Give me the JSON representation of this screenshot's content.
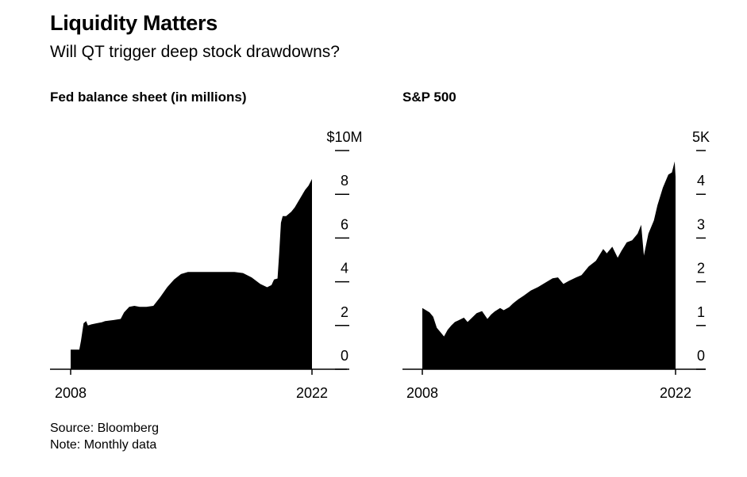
{
  "title": "Liquidity Matters",
  "subtitle": "Will QT trigger deep stock drawdowns?",
  "source": "Source: Bloomberg",
  "note": "Note: Monthly data",
  "colors": {
    "fill": "#000000",
    "background": "#ffffff"
  },
  "chart_data": [
    {
      "type": "area",
      "title": "Fed balance sheet (in millions)",
      "xlabel": "",
      "ylabel": "",
      "xlim": [
        2008,
        2022
      ],
      "ylim": [
        0,
        10
      ],
      "x_ticks": [
        2008,
        2022
      ],
      "x_tick_labels": [
        "2008",
        "2022"
      ],
      "y_ticks": [
        0,
        2,
        4,
        6,
        8,
        10
      ],
      "y_tick_labels": [
        "0",
        "2",
        "4",
        "6",
        "8",
        "$10M"
      ],
      "grid": false,
      "x": [
        2008.0,
        2008.25,
        2008.5,
        2008.6,
        2008.75,
        2008.9,
        2009.0,
        2009.2,
        2009.5,
        2009.8,
        2010.0,
        2010.5,
        2010.9,
        2011.1,
        2011.4,
        2011.7,
        2012.0,
        2012.4,
        2012.8,
        2013.2,
        2013.6,
        2014.0,
        2014.4,
        2014.8,
        2015.5,
        2016.5,
        2017.5,
        2018.0,
        2018.5,
        2019.0,
        2019.4,
        2019.65,
        2019.8,
        2020.0,
        2020.1,
        2020.2,
        2020.3,
        2020.5,
        2020.8,
        2021.0,
        2021.3,
        2021.6,
        2021.8,
        2022.0
      ],
      "y": [
        0.9,
        0.9,
        0.9,
        1.3,
        2.1,
        2.2,
        2.0,
        2.05,
        2.1,
        2.15,
        2.2,
        2.25,
        2.3,
        2.6,
        2.85,
        2.9,
        2.85,
        2.85,
        2.9,
        3.3,
        3.75,
        4.1,
        4.35,
        4.45,
        4.45,
        4.45,
        4.45,
        4.4,
        4.2,
        3.9,
        3.75,
        3.85,
        4.1,
        4.15,
        5.3,
        6.7,
        7.0,
        7.0,
        7.2,
        7.4,
        7.8,
        8.2,
        8.4,
        8.7
      ]
    },
    {
      "type": "area",
      "title": "S&P 500",
      "xlabel": "",
      "ylabel": "",
      "xlim": [
        2008,
        2022
      ],
      "ylim": [
        0,
        5
      ],
      "x_ticks": [
        2008,
        2022
      ],
      "x_tick_labels": [
        "2008",
        "2022"
      ],
      "y_ticks": [
        0,
        1,
        2,
        3,
        4,
        5
      ],
      "y_tick_labels": [
        "0",
        "1",
        "2",
        "3",
        "4",
        "5K"
      ],
      "grid": false,
      "x": [
        2008.0,
        2008.2,
        2008.4,
        2008.6,
        2008.8,
        2009.0,
        2009.2,
        2009.4,
        2009.6,
        2009.8,
        2010.0,
        2010.3,
        2010.5,
        2010.8,
        2011.0,
        2011.3,
        2011.6,
        2011.8,
        2012.0,
        2012.3,
        2012.5,
        2012.8,
        2013.0,
        2013.3,
        2013.6,
        2014.0,
        2014.4,
        2014.8,
        2015.2,
        2015.5,
        2015.8,
        2016.1,
        2016.5,
        2016.8,
        2017.2,
        2017.6,
        2018.0,
        2018.2,
        2018.5,
        2018.8,
        2019.0,
        2019.3,
        2019.6,
        2019.9,
        2020.1,
        2020.25,
        2020.5,
        2020.8,
        2021.0,
        2021.3,
        2021.6,
        2021.8,
        2021.95,
        2022.0
      ],
      "y": [
        1.4,
        1.35,
        1.3,
        1.2,
        0.95,
        0.85,
        0.75,
        0.9,
        1.0,
        1.08,
        1.12,
        1.18,
        1.08,
        1.2,
        1.28,
        1.33,
        1.15,
        1.25,
        1.32,
        1.4,
        1.35,
        1.42,
        1.5,
        1.6,
        1.68,
        1.8,
        1.88,
        1.98,
        2.08,
        2.1,
        1.95,
        2.02,
        2.1,
        2.15,
        2.35,
        2.48,
        2.75,
        2.65,
        2.8,
        2.55,
        2.7,
        2.9,
        2.95,
        3.1,
        3.3,
        2.6,
        3.1,
        3.4,
        3.75,
        4.15,
        4.45,
        4.5,
        4.75,
        4.4
      ]
    }
  ]
}
